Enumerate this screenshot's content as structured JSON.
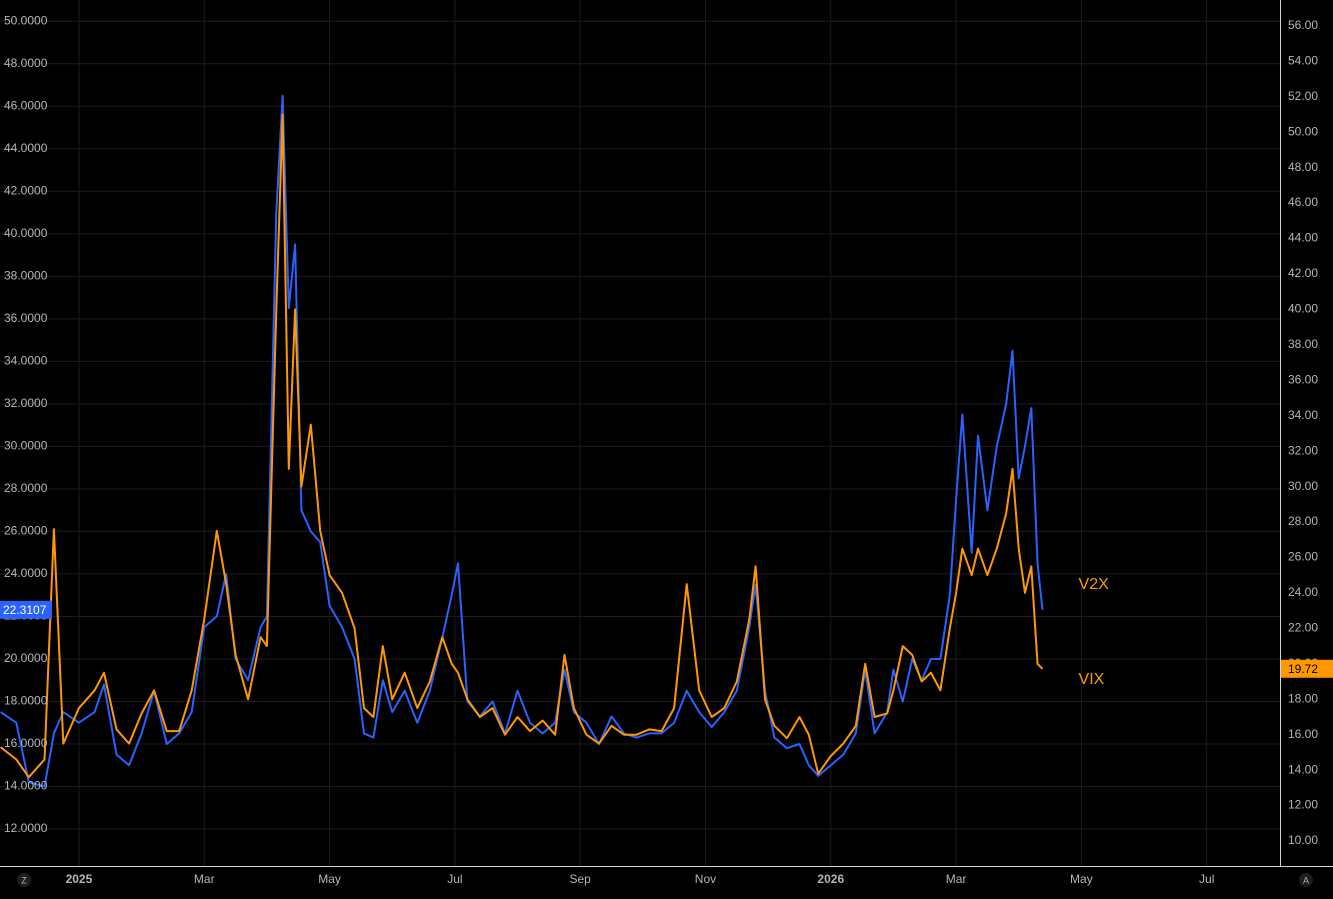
{
  "chart_data": {
    "type": "line",
    "x": [
      -1.25,
      -1.0,
      -0.8,
      -0.55,
      -0.4,
      -0.25,
      0.0,
      0.25,
      0.4,
      0.6,
      0.8,
      1.0,
      1.2,
      1.4,
      1.6,
      1.8,
      2.0,
      2.2,
      2.35,
      2.5,
      2.7,
      2.9,
      3.0,
      3.15,
      3.25,
      3.35,
      3.45,
      3.55,
      3.7,
      3.85,
      4.0,
      4.2,
      4.4,
      4.55,
      4.7,
      4.85,
      5.0,
      5.2,
      5.4,
      5.6,
      5.8,
      5.95,
      6.05,
      6.2,
      6.4,
      6.6,
      6.8,
      7.0,
      7.2,
      7.4,
      7.6,
      7.75,
      7.9,
      8.1,
      8.3,
      8.5,
      8.7,
      8.9,
      9.1,
      9.3,
      9.5,
      9.7,
      9.9,
      10.1,
      10.3,
      10.5,
      10.7,
      10.8,
      10.95,
      11.1,
      11.3,
      11.5,
      11.65,
      11.8,
      12.0,
      12.2,
      12.4,
      12.55,
      12.7,
      12.9,
      13.0,
      13.15,
      13.3,
      13.45,
      13.6,
      13.75,
      13.9,
      14.0,
      14.1,
      14.25,
      14.35,
      14.5,
      14.65,
      14.8,
      14.9,
      15.0,
      15.1,
      15.2,
      15.3,
      15.38
    ],
    "series": [
      {
        "name": "V2X",
        "color": "#2962ff",
        "axis": "y",
        "last_label": "22.3107",
        "values": [
          17.5,
          17.0,
          14.2,
          14.0,
          16.5,
          17.5,
          17.0,
          17.5,
          18.8,
          15.5,
          15.0,
          16.5,
          18.5,
          16.0,
          16.5,
          17.5,
          21.5,
          22.0,
          24.0,
          20.0,
          19.0,
          21.5,
          22.0,
          41.0,
          46.5,
          36.5,
          39.5,
          27.0,
          26.0,
          25.5,
          22.5,
          21.5,
          20.0,
          16.5,
          16.3,
          19.0,
          17.5,
          18.5,
          17.0,
          18.5,
          21.0,
          23.0,
          24.5,
          18.0,
          17.3,
          18.0,
          16.5,
          18.5,
          17.0,
          16.5,
          17.0,
          19.5,
          17.5,
          17.0,
          16.0,
          17.3,
          16.5,
          16.3,
          16.5,
          16.5,
          17.0,
          18.5,
          17.5,
          16.8,
          17.5,
          18.5,
          21.5,
          23.5,
          18.5,
          16.3,
          15.8,
          16.0,
          15.0,
          14.5,
          15.0,
          15.5,
          16.5,
          19.5,
          16.5,
          17.5,
          19.5,
          18.0,
          20.0,
          19.0,
          20.0,
          20.0,
          23.0,
          27.5,
          31.5,
          25.0,
          30.5,
          27.0,
          30.0,
          32.0,
          34.5,
          28.5,
          30.0,
          31.8,
          24.5,
          22.3107
        ]
      },
      {
        "name": "VIX",
        "color": "#ff9800",
        "axis": "y2",
        "last_label": "19.72",
        "values": [
          15.3,
          14.6,
          13.6,
          14.6,
          27.6,
          15.5,
          17.5,
          18.5,
          19.5,
          16.3,
          15.5,
          17.2,
          18.5,
          16.2,
          16.2,
          18.5,
          22.5,
          27.5,
          24.5,
          20.5,
          18.0,
          21.5,
          21.0,
          40.0,
          51.0,
          31.0,
          40.0,
          30.0,
          33.5,
          27.5,
          25.0,
          24.0,
          22.0,
          17.5,
          17.0,
          21.0,
          18.0,
          19.5,
          17.5,
          19.0,
          21.5,
          20.0,
          19.5,
          18.0,
          17.0,
          17.5,
          16.0,
          17.0,
          16.2,
          16.8,
          16.0,
          20.5,
          17.5,
          16.0,
          15.5,
          16.5,
          16.0,
          16.0,
          16.3,
          16.2,
          17.5,
          24.5,
          18.5,
          17.0,
          17.5,
          19.0,
          22.5,
          25.5,
          18.0,
          16.5,
          15.8,
          17.0,
          16.0,
          13.8,
          14.8,
          15.5,
          16.5,
          20.0,
          17.0,
          17.2,
          18.5,
          21.0,
          20.5,
          19.0,
          19.5,
          18.5,
          22.0,
          24.0,
          26.5,
          25.0,
          26.5,
          25.0,
          26.5,
          28.5,
          31.0,
          26.5,
          24.0,
          25.5,
          20.0,
          19.72
        ]
      }
    ],
    "xlim": [
      -1.26,
      19.17
    ],
    "xticks": [
      {
        "value": 0,
        "label": "2025"
      },
      {
        "value": 2,
        "label": "Mar"
      },
      {
        "value": 4,
        "label": "May"
      },
      {
        "value": 6,
        "label": "Jul"
      },
      {
        "value": 8,
        "label": "Sep"
      },
      {
        "value": 10,
        "label": "Nov"
      },
      {
        "value": 12,
        "label": "2026"
      },
      {
        "value": 14,
        "label": "Mar"
      },
      {
        "value": 16,
        "label": "May"
      },
      {
        "value": 18,
        "label": "Jul"
      }
    ],
    "ylim": [
      10.26,
      51.0
    ],
    "yticks": [
      {
        "value": 12,
        "label": "12.0000"
      },
      {
        "value": 14,
        "label": "14.0000"
      },
      {
        "value": 16,
        "label": "16.0000"
      },
      {
        "value": 18,
        "label": "18.0000"
      },
      {
        "value": 20,
        "label": "20.0000"
      },
      {
        "value": 22,
        "label": "22.0000"
      },
      {
        "value": 24,
        "label": "24.0000"
      },
      {
        "value": 26,
        "label": "26.0000"
      },
      {
        "value": 28,
        "label": "28.0000"
      },
      {
        "value": 30,
        "label": "30.0000"
      },
      {
        "value": 32,
        "label": "32.0000"
      },
      {
        "value": 34,
        "label": "34.0000"
      },
      {
        "value": 36,
        "label": "36.0000"
      },
      {
        "value": 38,
        "label": "38.0000"
      },
      {
        "value": 40,
        "label": "40.0000"
      },
      {
        "value": 42,
        "label": "42.0000"
      },
      {
        "value": 44,
        "label": "44.0000"
      },
      {
        "value": 46,
        "label": "46.0000"
      },
      {
        "value": 48,
        "label": "48.0000"
      },
      {
        "value": 50,
        "label": "50.0000"
      }
    ],
    "y2lim": [
      8.59,
      57.46
    ],
    "y2ticks": [
      {
        "value": 10,
        "label": "10.00"
      },
      {
        "value": 12,
        "label": "12.00"
      },
      {
        "value": 14,
        "label": "14.00"
      },
      {
        "value": 16,
        "label": "16.00"
      },
      {
        "value": 18,
        "label": "18.00"
      },
      {
        "value": 20,
        "label": "20.00"
      },
      {
        "value": 22,
        "label": "22.00"
      },
      {
        "value": 24,
        "label": "24.00"
      },
      {
        "value": 26,
        "label": "26.00"
      },
      {
        "value": 28,
        "label": "28.00"
      },
      {
        "value": 30,
        "label": "30.00"
      },
      {
        "value": 32,
        "label": "32.00"
      },
      {
        "value": 34,
        "label": "34.00"
      },
      {
        "value": 36,
        "label": "36.00"
      },
      {
        "value": 38,
        "label": "38.00"
      },
      {
        "value": 40,
        "label": "40.00"
      },
      {
        "value": 42,
        "label": "42.00"
      },
      {
        "value": 44,
        "label": "44.00"
      },
      {
        "value": 46,
        "label": "46.00"
      },
      {
        "value": 48,
        "label": "48.00"
      },
      {
        "value": 50,
        "label": "50.00"
      },
      {
        "value": 52,
        "label": "52.00"
      },
      {
        "value": 54,
        "label": "54.00"
      },
      {
        "value": 56,
        "label": "56.00"
      }
    ],
    "grid": true
  },
  "controls": {
    "left": "Z",
    "right": "A"
  }
}
